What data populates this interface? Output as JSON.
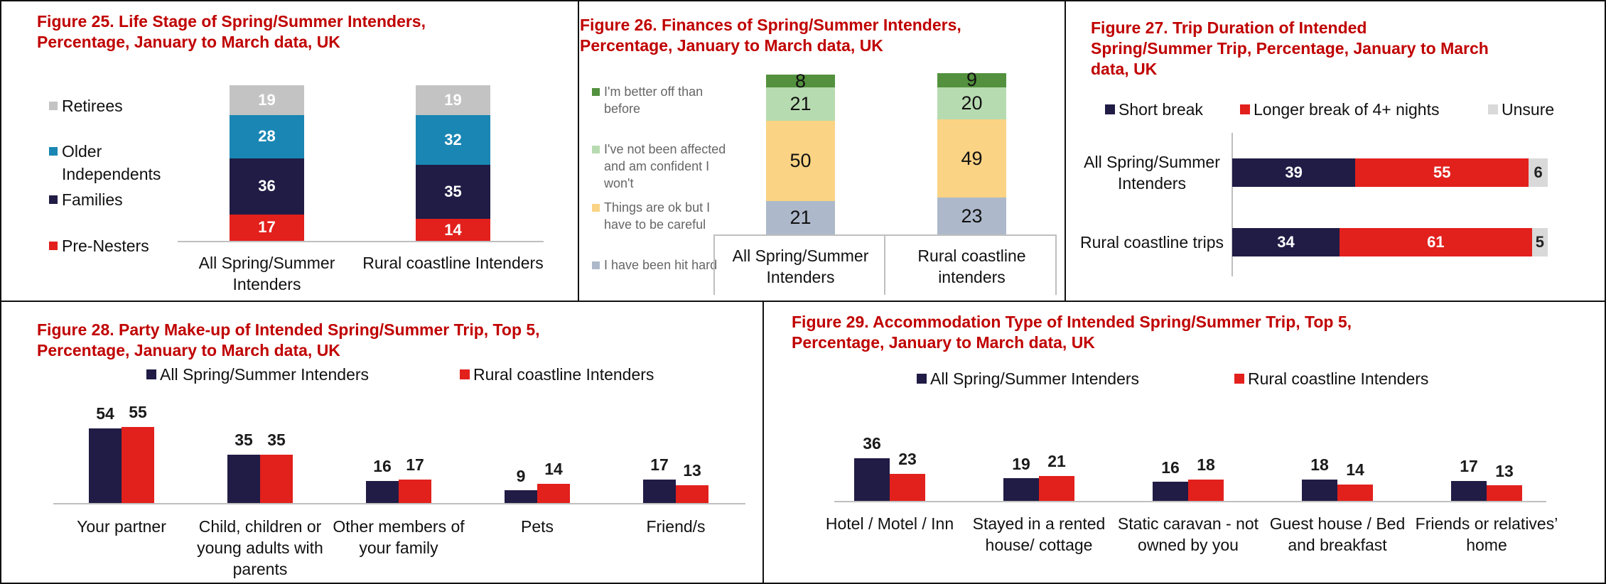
{
  "chart_data": [
    {
      "type": "bar",
      "stacked": true,
      "orientation": "vertical",
      "title": "Figure 25.  Life Stage of Spring/Summer Intenders, Percentage, January to March data, UK",
      "categories": [
        "All Spring/Summer Intenders",
        "Rural coastline Intenders"
      ],
      "series": [
        {
          "name": "Pre-Nesters",
          "color": "#e2201c",
          "values": [
            17,
            14
          ]
        },
        {
          "name": "Families",
          "color": "#201c45",
          "values": [
            36,
            35
          ]
        },
        {
          "name": "Older Independents",
          "color": "#1a86b3",
          "values": [
            28,
            32
          ]
        },
        {
          "name": "Retirees",
          "color": "#c3c3c3",
          "values": [
            19,
            19
          ]
        }
      ]
    },
    {
      "type": "bar",
      "stacked": true,
      "orientation": "vertical",
      "title": "Figure 26.  Finances of Spring/Summer Intenders, Percentage, January to March data, UK",
      "categories": [
        "All Spring/Summer Intenders",
        "Rural coastline intenders"
      ],
      "series": [
        {
          "name": "I have been hit hard",
          "color": "#adb9ca",
          "values": [
            21,
            23
          ]
        },
        {
          "name": "Things are ok but I have to be careful",
          "color": "#fad384",
          "values": [
            50,
            49
          ]
        },
        {
          "name": "I've not been affected and am confident I won't",
          "color": "#b7dbb0",
          "values": [
            21,
            20
          ]
        },
        {
          "name": "I'm better off than before",
          "color": "#53913e",
          "values": [
            8,
            9
          ]
        }
      ]
    },
    {
      "type": "bar",
      "stacked": true,
      "orientation": "horizontal",
      "title": "Figure 27. Trip Duration of Intended Spring/Summer Trip, Percentage, January to March data, UK",
      "categories": [
        "All Spring/Summer Intenders",
        "Rural coastline trips"
      ],
      "series": [
        {
          "name": "Short break",
          "color": "#201c45",
          "values": [
            39,
            34
          ]
        },
        {
          "name": "Longer break of 4+ nights",
          "color": "#e2201c",
          "values": [
            55,
            61
          ]
        },
        {
          "name": "Unsure",
          "color": "#d9d9d9",
          "values": [
            6,
            5
          ]
        }
      ]
    },
    {
      "type": "bar",
      "stacked": false,
      "orientation": "vertical",
      "title": "Figure 28. Party Make-up of Intended Spring/Summer Trip, Top 5, Percentage, January to March data, UK",
      "categories": [
        "Your partner",
        "Child, children or young adults with parents",
        "Other members of your family",
        "Pets",
        "Friend/s"
      ],
      "series": [
        {
          "name": "All Spring/Summer Intenders",
          "color": "#201c45",
          "values": [
            54,
            35,
            16,
            9,
            17
          ]
        },
        {
          "name": "Rural coastline Intenders",
          "color": "#e2201c",
          "values": [
            55,
            35,
            17,
            14,
            13
          ]
        }
      ]
    },
    {
      "type": "bar",
      "stacked": false,
      "orientation": "vertical",
      "title": "Figure 29. Accommodation Type of Intended Spring/Summer Trip, Top 5, Percentage, January to March data, UK",
      "categories": [
        "Hotel / Motel / Inn",
        "Stayed in a rented house/ cottage",
        "Static caravan - not owned by you",
        "Guest house / Bed and breakfast",
        "Friends or relatives’ home"
      ],
      "series": [
        {
          "name": "All Spring/Summer Intenders",
          "color": "#201c45",
          "values": [
            36,
            19,
            16,
            18,
            17
          ]
        },
        {
          "name": "Rural coastline Intenders",
          "color": "#e2201c",
          "values": [
            23,
            21,
            18,
            14,
            13
          ]
        }
      ]
    }
  ]
}
